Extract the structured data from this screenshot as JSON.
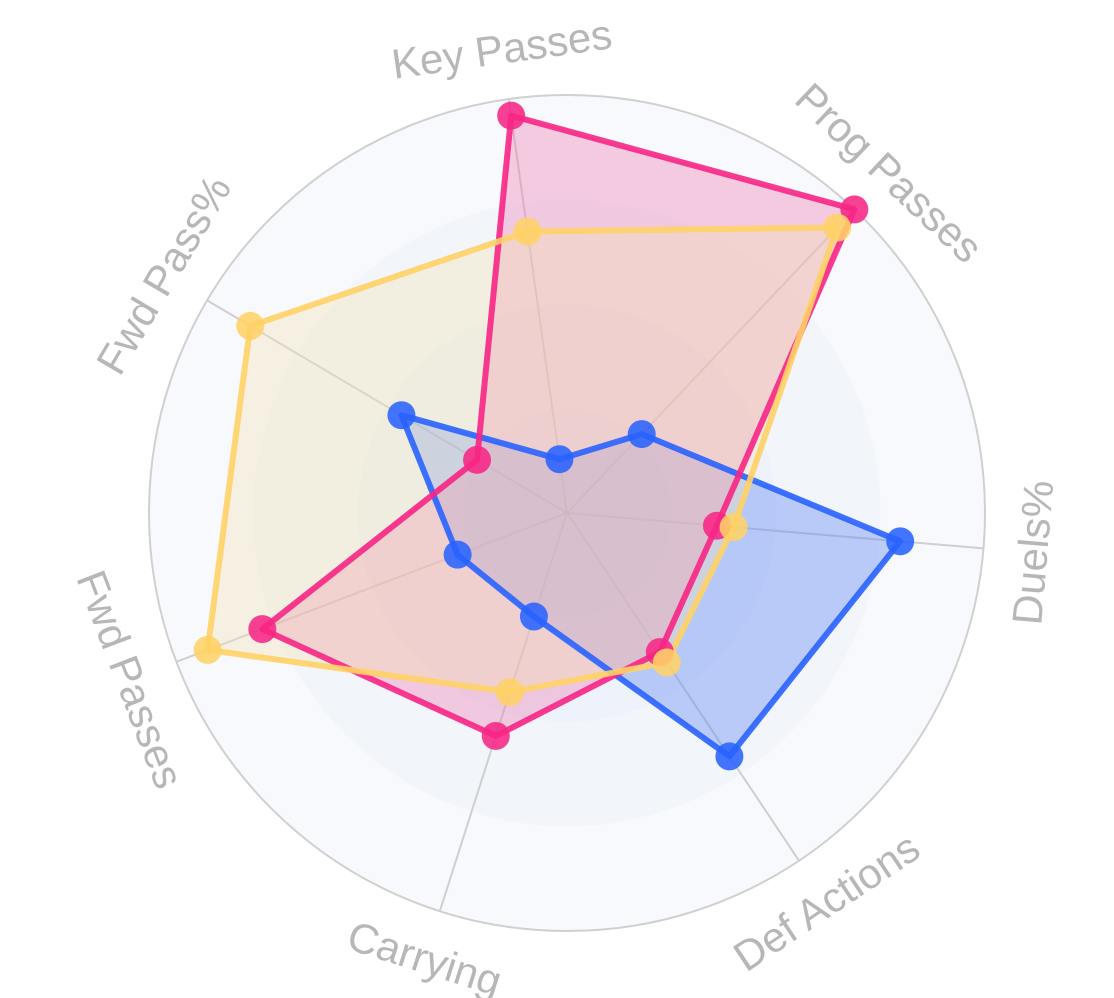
{
  "chart_data": {
    "type": "radar",
    "title": "",
    "axes": [
      "Key Passes",
      "Prog Passes",
      "Duels%",
      "Def Actions",
      "Carrying",
      "Fwd Passes",
      "Fwd Pass%"
    ],
    "range": [
      0,
      100
    ],
    "grid_rings": 4,
    "legend": "none",
    "series": [
      {
        "color": "#2962FF",
        "fill": "#5B84F5",
        "values": [
          13,
          26,
          80,
          70,
          26,
          28,
          46
        ]
      },
      {
        "color": "#F72585",
        "fill": "#EC7FB2",
        "values": [
          96,
          100,
          36,
          40,
          56,
          78,
          25
        ]
      },
      {
        "color": "#FFD166",
        "fill": "#F2E3B6",
        "values": [
          68,
          94,
          40,
          43,
          45,
          92,
          88
        ]
      }
    ]
  }
}
